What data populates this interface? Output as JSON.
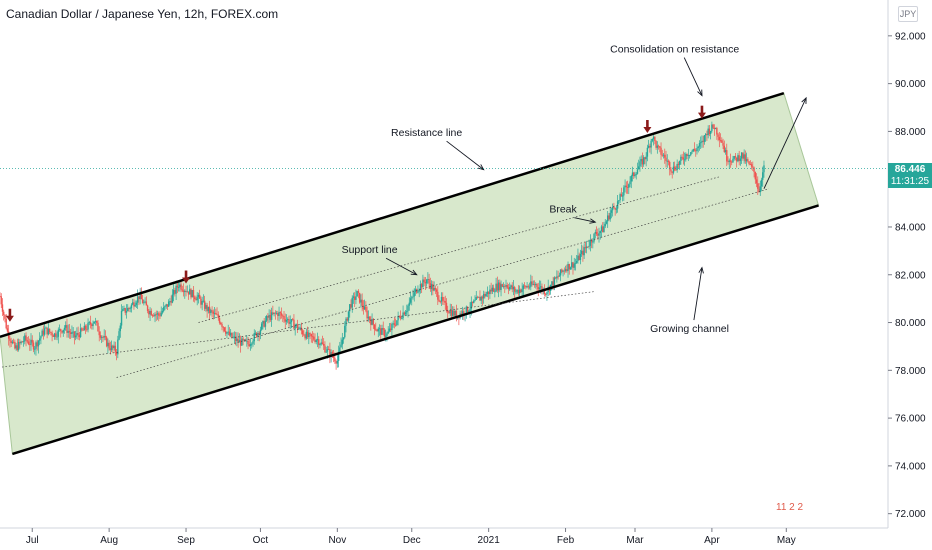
{
  "header": {
    "title": "Canadian Dollar / Japanese Yen, 12h, FOREX.com",
    "unit": "JPY"
  },
  "price_scale": {
    "current_price": "86.446",
    "countdown": "11:31:25"
  },
  "logo_text": "11 2 2",
  "chart_data": {
    "type": "candlestick",
    "title": "Canadian Dollar / Japanese Yen, 12h, FOREX.com",
    "y_ticks": [
      "92.000",
      "90.000",
      "88.000",
      "86.000",
      "84.000",
      "82.000",
      "80.000",
      "78.000",
      "76.000",
      "74.000",
      "72.000"
    ],
    "y_tick_values": [
      92,
      90,
      88,
      86,
      84,
      82,
      80,
      78,
      76,
      74,
      72
    ],
    "x_ticks": [
      "Jul",
      "Aug",
      "Sep",
      "Oct",
      "Nov",
      "Dec",
      "2021",
      "Feb",
      "Mar",
      "Apr",
      "May"
    ],
    "x_tick_days": [
      13,
      44,
      75,
      105,
      136,
      166,
      197,
      228,
      256,
      287,
      317
    ],
    "x_start_label": "2020-06-18",
    "ylim": [
      71.4,
      93.5
    ],
    "xlim_days": [
      0,
      358
    ],
    "current_price": 86.446,
    "colors": {
      "up": "#26a69a",
      "down": "#ef5350",
      "channel_fill": "#d8e8cc",
      "marker": "#8b1a1a"
    },
    "price_path": [
      [
        0,
        81.1
      ],
      [
        3,
        79.6
      ],
      [
        6,
        78.9
      ],
      [
        10,
        79.3
      ],
      [
        14,
        79.0
      ],
      [
        18,
        79.7
      ],
      [
        22,
        79.5
      ],
      [
        26,
        79.8
      ],
      [
        30,
        79.4
      ],
      [
        34,
        79.7
      ],
      [
        38,
        80.1
      ],
      [
        40,
        79.6
      ],
      [
        44,
        79.0
      ],
      [
        47,
        78.8
      ],
      [
        49,
        80.4
      ],
      [
        52,
        80.6
      ],
      [
        56,
        81.1
      ],
      [
        60,
        80.5
      ],
      [
        64,
        80.3
      ],
      [
        68,
        80.8
      ],
      [
        72,
        81.6
      ],
      [
        76,
        81.3
      ],
      [
        80,
        81.0
      ],
      [
        84,
        80.5
      ],
      [
        88,
        80.2
      ],
      [
        92,
        79.5
      ],
      [
        96,
        79.2
      ],
      [
        100,
        79.1
      ],
      [
        104,
        79.6
      ],
      [
        108,
        80.2
      ],
      [
        112,
        80.4
      ],
      [
        116,
        80.1
      ],
      [
        120,
        79.8
      ],
      [
        124,
        79.4
      ],
      [
        128,
        79.3
      ],
      [
        132,
        78.8
      ],
      [
        136,
        78.4
      ],
      [
        138,
        79.3
      ],
      [
        141,
        80.7
      ],
      [
        144,
        81.2
      ],
      [
        148,
        80.3
      ],
      [
        152,
        79.7
      ],
      [
        156,
        79.5
      ],
      [
        160,
        80.1
      ],
      [
        164,
        80.6
      ],
      [
        168,
        81.4
      ],
      [
        172,
        81.8
      ],
      [
        176,
        81.2
      ],
      [
        180,
        80.6
      ],
      [
        184,
        80.3
      ],
      [
        188,
        80.5
      ],
      [
        192,
        80.9
      ],
      [
        196,
        81.2
      ],
      [
        200,
        81.5
      ],
      [
        204,
        81.6
      ],
      [
        208,
        81.3
      ],
      [
        212,
        81.5
      ],
      [
        216,
        81.6
      ],
      [
        220,
        81.3
      ],
      [
        224,
        81.8
      ],
      [
        228,
        82.3
      ],
      [
        232,
        82.5
      ],
      [
        236,
        83.1
      ],
      [
        240,
        83.7
      ],
      [
        243,
        83.9
      ],
      [
        246,
        84.6
      ],
      [
        249,
        85.0
      ],
      [
        252,
        85.6
      ],
      [
        256,
        86.3
      ],
      [
        260,
        86.9
      ],
      [
        263,
        87.8
      ],
      [
        265,
        87.3
      ],
      [
        268,
        86.9
      ],
      [
        271,
        86.4
      ],
      [
        274,
        86.7
      ],
      [
        277,
        87.1
      ],
      [
        280,
        87.2
      ],
      [
        283,
        87.5
      ],
      [
        285,
        88.0
      ],
      [
        288,
        88.2
      ],
      [
        291,
        87.6
      ],
      [
        293,
        86.9
      ],
      [
        296,
        86.8
      ],
      [
        299,
        87.0
      ],
      [
        302,
        86.6
      ],
      [
        304,
        86.3
      ],
      [
        306,
        85.5
      ],
      [
        307,
        86.1
      ],
      [
        308,
        86.446
      ]
    ],
    "resistance_line": {
      "start": [
        0,
        79.4
      ],
      "end": [
        316,
        89.6
      ]
    },
    "support_line": {
      "start": [
        5,
        74.5
      ],
      "end": [
        330,
        84.9
      ]
    },
    "channel": {
      "tl": [
        0,
        79.4
      ],
      "tr": [
        316,
        89.6
      ],
      "br": [
        330,
        84.9
      ],
      "bl": [
        5,
        74.5
      ]
    },
    "dotted_lines": [
      {
        "start": [
          -2,
          78.1
        ],
        "end": [
          240,
          81.3
        ]
      },
      {
        "start": [
          47,
          77.7
        ],
        "end": [
          310,
          85.6
        ]
      },
      {
        "start": [
          80,
          80.0
        ],
        "end": [
          290,
          86.1
        ]
      }
    ],
    "marker_arrows": [
      {
        "day": 4,
        "price": 80.2
      },
      {
        "day": 75,
        "price": 81.8
      },
      {
        "day": 261,
        "price": 88.1
      },
      {
        "day": 283,
        "price": 88.7
      }
    ],
    "projection_arrow": {
      "start": [
        308,
        85.6
      ],
      "end": [
        325,
        89.4
      ]
    },
    "annotations": [
      {
        "text": "Consolidation on resistance",
        "day": 272,
        "price": 91.3,
        "arrow_to": [
          283,
          89.5
        ]
      },
      {
        "text": "Resistance line",
        "day": 172,
        "price": 87.8,
        "arrow_to": [
          195,
          86.4
        ]
      },
      {
        "text": "Break",
        "day": 227,
        "price": 84.6,
        "arrow_to": [
          240,
          84.2
        ]
      },
      {
        "text": "Support line",
        "day": 149,
        "price": 82.9,
        "arrow_to": [
          168,
          82.0
        ]
      },
      {
        "text": "Growing channel",
        "day": 278,
        "price": 79.6,
        "arrow_to": [
          283,
          82.3
        ]
      }
    ]
  }
}
